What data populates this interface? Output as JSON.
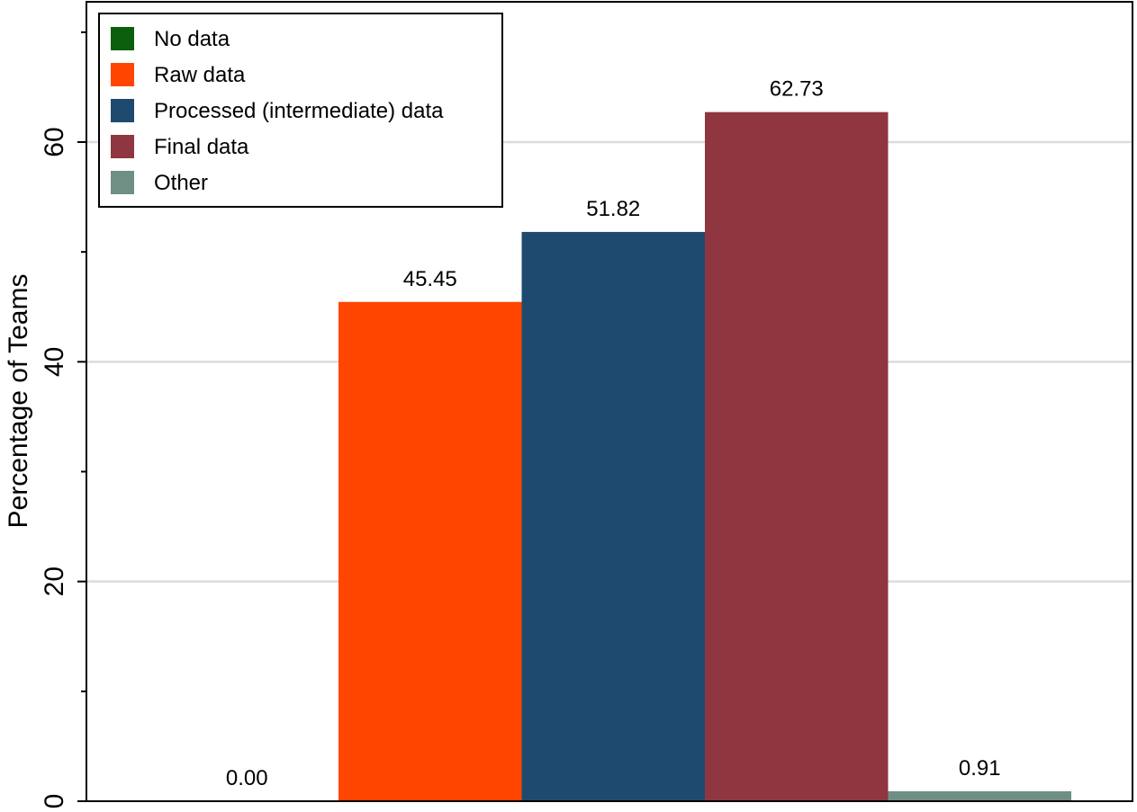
{
  "chart_data": {
    "type": "bar",
    "title": "",
    "xlabel": "",
    "ylabel": "Percentage of Teams",
    "ylim": [
      0,
      72
    ],
    "yticks_major": [
      0,
      20,
      40,
      60
    ],
    "yticks_minor": [
      10,
      30,
      50,
      70
    ],
    "grid": "horizontal major",
    "legend_position": "top-left",
    "series": [
      {
        "name": "No data",
        "value": 0.0,
        "label": "0.00",
        "color": "#0b5e0b"
      },
      {
        "name": "Raw data",
        "value": 45.45,
        "label": "45.45",
        "color": "#ff4500"
      },
      {
        "name": "Processed (intermediate) data",
        "value": 51.82,
        "label": "51.82",
        "color": "#1f4a70"
      },
      {
        "name": "Final data",
        "value": 62.73,
        "label": "62.73",
        "color": "#8f3640"
      },
      {
        "name": "Other",
        "value": 0.91,
        "label": "0.91",
        "color": "#6f8f84"
      }
    ]
  }
}
